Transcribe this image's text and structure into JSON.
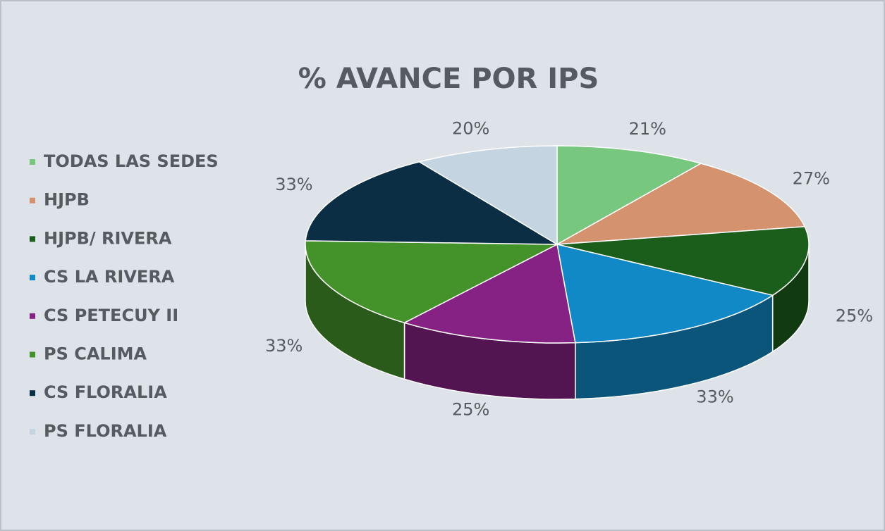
{
  "chart_data": {
    "type": "pie",
    "title": "% AVANCE POR IPS",
    "categories": [
      "TODAS LAS SEDES",
      "HJPB",
      "HJPB/ RIVERA",
      "CS LA RIVERA",
      "CS PETECUY II",
      "PS CALIMA",
      "CS FLORALIA",
      "PS FLORALIA"
    ],
    "values": [
      21,
      27,
      25,
      33,
      25,
      33,
      33,
      20
    ],
    "value_labels": [
      "21%",
      "27%",
      "25%",
      "33%",
      "25%",
      "33%",
      "33%",
      "20%"
    ],
    "colors": [
      "#77c77f",
      "#d4926f",
      "#1b5e1c",
      "#1189c6",
      "#862283",
      "#44922a",
      "#0b2e44",
      "#c4d4e0"
    ],
    "legend": "left"
  }
}
